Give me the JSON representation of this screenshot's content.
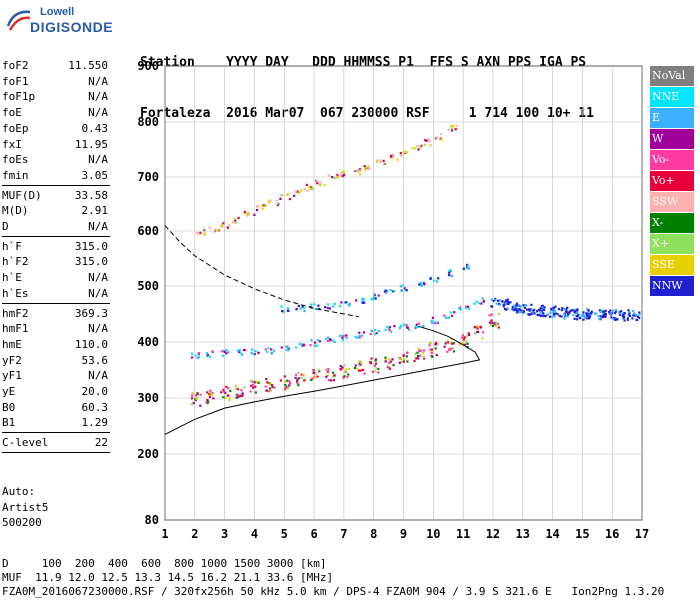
{
  "logo": {
    "line1": "Lowell",
    "line2": "DIGISONDE"
  },
  "header": {
    "line1": "Station    YYYY DAY   DDD HHMMSS P1  FFS S AXN PPS IGA PS",
    "line2": "Fortaleza  2016 Mar07  067 230000 RSF     1 714 100 10+ 11"
  },
  "params": {
    "group1": [
      {
        "k": "foF2",
        "v": "11.550"
      },
      {
        "k": "foF1",
        "v": "N/A"
      },
      {
        "k": "foF1p",
        "v": "N/A"
      },
      {
        "k": "foE",
        "v": "N/A"
      },
      {
        "k": "foEp",
        "v": "0.43"
      },
      {
        "k": "fxI",
        "v": "11.95"
      },
      {
        "k": "foEs",
        "v": "N/A"
      },
      {
        "k": "fmin",
        "v": "3.05"
      }
    ],
    "group2": [
      {
        "k": "MUF(D)",
        "v": "33.58"
      },
      {
        "k": "M(D)",
        "v": "2.91"
      },
      {
        "k": "D",
        "v": "N/A"
      }
    ],
    "group3": [
      {
        "k": "h`F",
        "v": "315.0"
      },
      {
        "k": "h`F2",
        "v": "315.0"
      },
      {
        "k": "h`E",
        "v": "N/A"
      },
      {
        "k": "h`Es",
        "v": "N/A"
      }
    ],
    "group4": [
      {
        "k": "hmF2",
        "v": "369.3"
      },
      {
        "k": "hmF1",
        "v": "N/A"
      },
      {
        "k": "hmE",
        "v": "110.0"
      },
      {
        "k": "yF2",
        "v": "53.6"
      },
      {
        "k": "yF1",
        "v": "N/A"
      },
      {
        "k": "yE",
        "v": "20.0"
      },
      {
        "k": "B0",
        "v": "60.3"
      },
      {
        "k": "B1",
        "v": "1.29"
      }
    ],
    "group5": [
      {
        "k": "C-level",
        "v": "22"
      }
    ]
  },
  "auto": {
    "l1": "Auto:",
    "l2": "Artist5",
    "l3": "500200"
  },
  "legend": [
    {
      "label": "NoVal",
      "color": "#808080"
    },
    {
      "label": "NNE",
      "color": "#00e5ff"
    },
    {
      "label": "E",
      "color": "#3ab0ff"
    },
    {
      "label": "W",
      "color": "#a0009a"
    },
    {
      "label": "Vo-",
      "color": "#ff3aa0"
    },
    {
      "label": "Vo+",
      "color": "#e8003c"
    },
    {
      "label": "SSW",
      "color": "#ffb0b0"
    },
    {
      "label": "X-",
      "color": "#008000"
    },
    {
      "label": "X+",
      "color": "#90e060"
    },
    {
      "label": "SSE",
      "color": "#e8d000"
    },
    {
      "label": "NNW",
      "color": "#2020d0"
    }
  ],
  "footer": {
    "l1": "D     100  200  400  600  800 1000 1500 3000 [km]",
    "l2": "MUF  11.9 12.0 12.5 13.3 14.5 16.2 21.1 33.6 [MHz]",
    "l3": "FZA0M_2016067230000.RSF / 320fx256h 50 kHz 5.0 km / DPS-4 FZA0M 904 / 3.9 S 321.6 E   Ion2Png 1.3.20"
  },
  "chart_data": {
    "type": "scatter",
    "x_ticks": [
      1,
      2,
      3,
      4,
      5,
      6,
      7,
      8,
      9,
      10,
      11,
      12,
      13,
      14,
      15,
      16,
      17
    ],
    "y_ticks": [
      80,
      200,
      300,
      400,
      500,
      600,
      700,
      800,
      900
    ],
    "xlim": [
      1,
      17
    ],
    "ylim": [
      80,
      900
    ],
    "grid": true,
    "clusters": [
      {
        "name": "F2-low",
        "pts": [
          [
            2.0,
            300
          ],
          [
            2.5,
            305
          ],
          [
            3.0,
            310
          ],
          [
            3.5,
            315
          ],
          [
            4.0,
            320
          ],
          [
            4.5,
            325
          ],
          [
            5.0,
            330
          ],
          [
            5.5,
            335
          ],
          [
            6.0,
            340
          ],
          [
            6.5,
            345
          ],
          [
            7.0,
            350
          ],
          [
            7.5,
            355
          ],
          [
            8.0,
            360
          ],
          [
            8.5,
            365
          ],
          [
            9.0,
            372
          ],
          [
            9.5,
            380
          ],
          [
            10.0,
            388
          ],
          [
            10.5,
            395
          ],
          [
            11.0,
            405
          ],
          [
            11.5,
            420
          ],
          [
            12.0,
            440
          ]
        ]
      },
      {
        "name": "F2-upper",
        "pts": [
          [
            2.0,
            378
          ],
          [
            2.5,
            380
          ],
          [
            3.0,
            382
          ],
          [
            3.5,
            383
          ],
          [
            4.0,
            385
          ],
          [
            4.5,
            387
          ],
          [
            5.0,
            390
          ],
          [
            5.5,
            395
          ],
          [
            6.0,
            400
          ],
          [
            6.5,
            405
          ],
          [
            7.0,
            410
          ],
          [
            7.5,
            415
          ],
          [
            8.0,
            420
          ],
          [
            8.5,
            425
          ],
          [
            9.0,
            428
          ],
          [
            9.5,
            432
          ],
          [
            10.0,
            440
          ],
          [
            10.5,
            450
          ],
          [
            11.0,
            460
          ],
          [
            11.5,
            475
          ]
        ]
      },
      {
        "name": "F2-mid",
        "pts": [
          [
            5.0,
            460
          ],
          [
            5.5,
            462
          ],
          [
            6.0,
            464
          ],
          [
            6.5,
            466
          ],
          [
            7.0,
            470
          ],
          [
            7.5,
            475
          ],
          [
            8.0,
            482
          ],
          [
            8.5,
            490
          ],
          [
            9.0,
            498
          ],
          [
            9.5,
            505
          ],
          [
            10.0,
            512
          ],
          [
            10.5,
            525
          ],
          [
            11.0,
            535
          ]
        ]
      },
      {
        "name": "F2-2hop",
        "pts": [
          [
            2.2,
            600
          ],
          [
            2.6,
            605
          ],
          [
            3.0,
            612
          ],
          [
            3.4,
            622
          ],
          [
            3.8,
            632
          ],
          [
            4.2,
            645
          ],
          [
            4.6,
            655
          ],
          [
            5.0,
            665
          ],
          [
            5.4,
            672
          ],
          [
            5.8,
            682
          ],
          [
            6.2,
            690
          ],
          [
            6.6,
            700
          ],
          [
            7.0,
            708
          ],
          [
            7.4,
            712
          ],
          [
            7.8,
            720
          ],
          [
            8.2,
            728
          ],
          [
            8.6,
            738
          ],
          [
            9.0,
            745
          ],
          [
            9.4,
            755
          ],
          [
            9.8,
            765
          ],
          [
            10.2,
            775
          ],
          [
            10.6,
            790
          ]
        ]
      },
      {
        "name": "spread-F",
        "pts": [
          [
            12.2,
            470
          ],
          [
            12.6,
            465
          ],
          [
            13.0,
            460
          ],
          [
            13.4,
            458
          ],
          [
            13.8,
            456
          ],
          [
            14.2,
            455
          ],
          [
            14.6,
            452
          ],
          [
            15.0,
            450
          ],
          [
            15.4,
            452
          ],
          [
            15.8,
            450
          ],
          [
            16.2,
            448
          ],
          [
            16.6,
            450
          ]
        ]
      }
    ],
    "profile_solid": [
      [
        1,
        235
      ],
      [
        2,
        262
      ],
      [
        3,
        282
      ],
      [
        4,
        293
      ],
      [
        5,
        303
      ],
      [
        6,
        312
      ],
      [
        7,
        322
      ],
      [
        8,
        332
      ],
      [
        9,
        342
      ],
      [
        10,
        352
      ],
      [
        11,
        362
      ],
      [
        11.55,
        368
      ],
      [
        11.4,
        382
      ],
      [
        11.0,
        395
      ],
      [
        10.5,
        410
      ],
      [
        10.0,
        420
      ],
      [
        9.5,
        428
      ]
    ],
    "profile_dashed": [
      [
        1,
        610
      ],
      [
        1.5,
        580
      ],
      [
        2,
        555
      ],
      [
        3,
        520
      ],
      [
        4,
        495
      ],
      [
        5,
        475
      ],
      [
        6,
        460
      ],
      [
        7,
        450
      ],
      [
        7.5,
        445
      ]
    ]
  }
}
